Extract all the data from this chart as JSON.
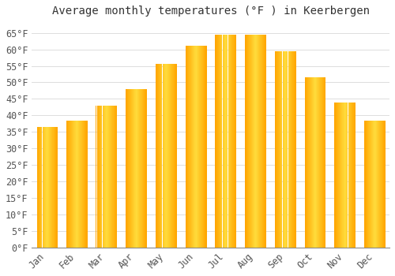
{
  "title": "Average monthly temperatures (°F ) in Keerbergen",
  "months": [
    "Jan",
    "Feb",
    "Mar",
    "Apr",
    "May",
    "Jun",
    "Jul",
    "Aug",
    "Sep",
    "Oct",
    "Nov",
    "Dec"
  ],
  "values": [
    36.5,
    38.5,
    43.0,
    48.0,
    55.5,
    61.0,
    64.5,
    64.5,
    59.5,
    51.5,
    44.0,
    38.5
  ],
  "bar_color_center": "#FFD060",
  "bar_color_edge": "#FFA500",
  "background_color": "#FFFFFF",
  "plot_bg_color": "#FFFFFF",
  "grid_color": "#DDDDDD",
  "ylim": [
    0,
    68
  ],
  "yticks": [
    0,
    5,
    10,
    15,
    20,
    25,
    30,
    35,
    40,
    45,
    50,
    55,
    60,
    65
  ],
  "title_fontsize": 10,
  "tick_fontsize": 8.5,
  "tick_label_color": "#555555",
  "bar_width": 0.7
}
